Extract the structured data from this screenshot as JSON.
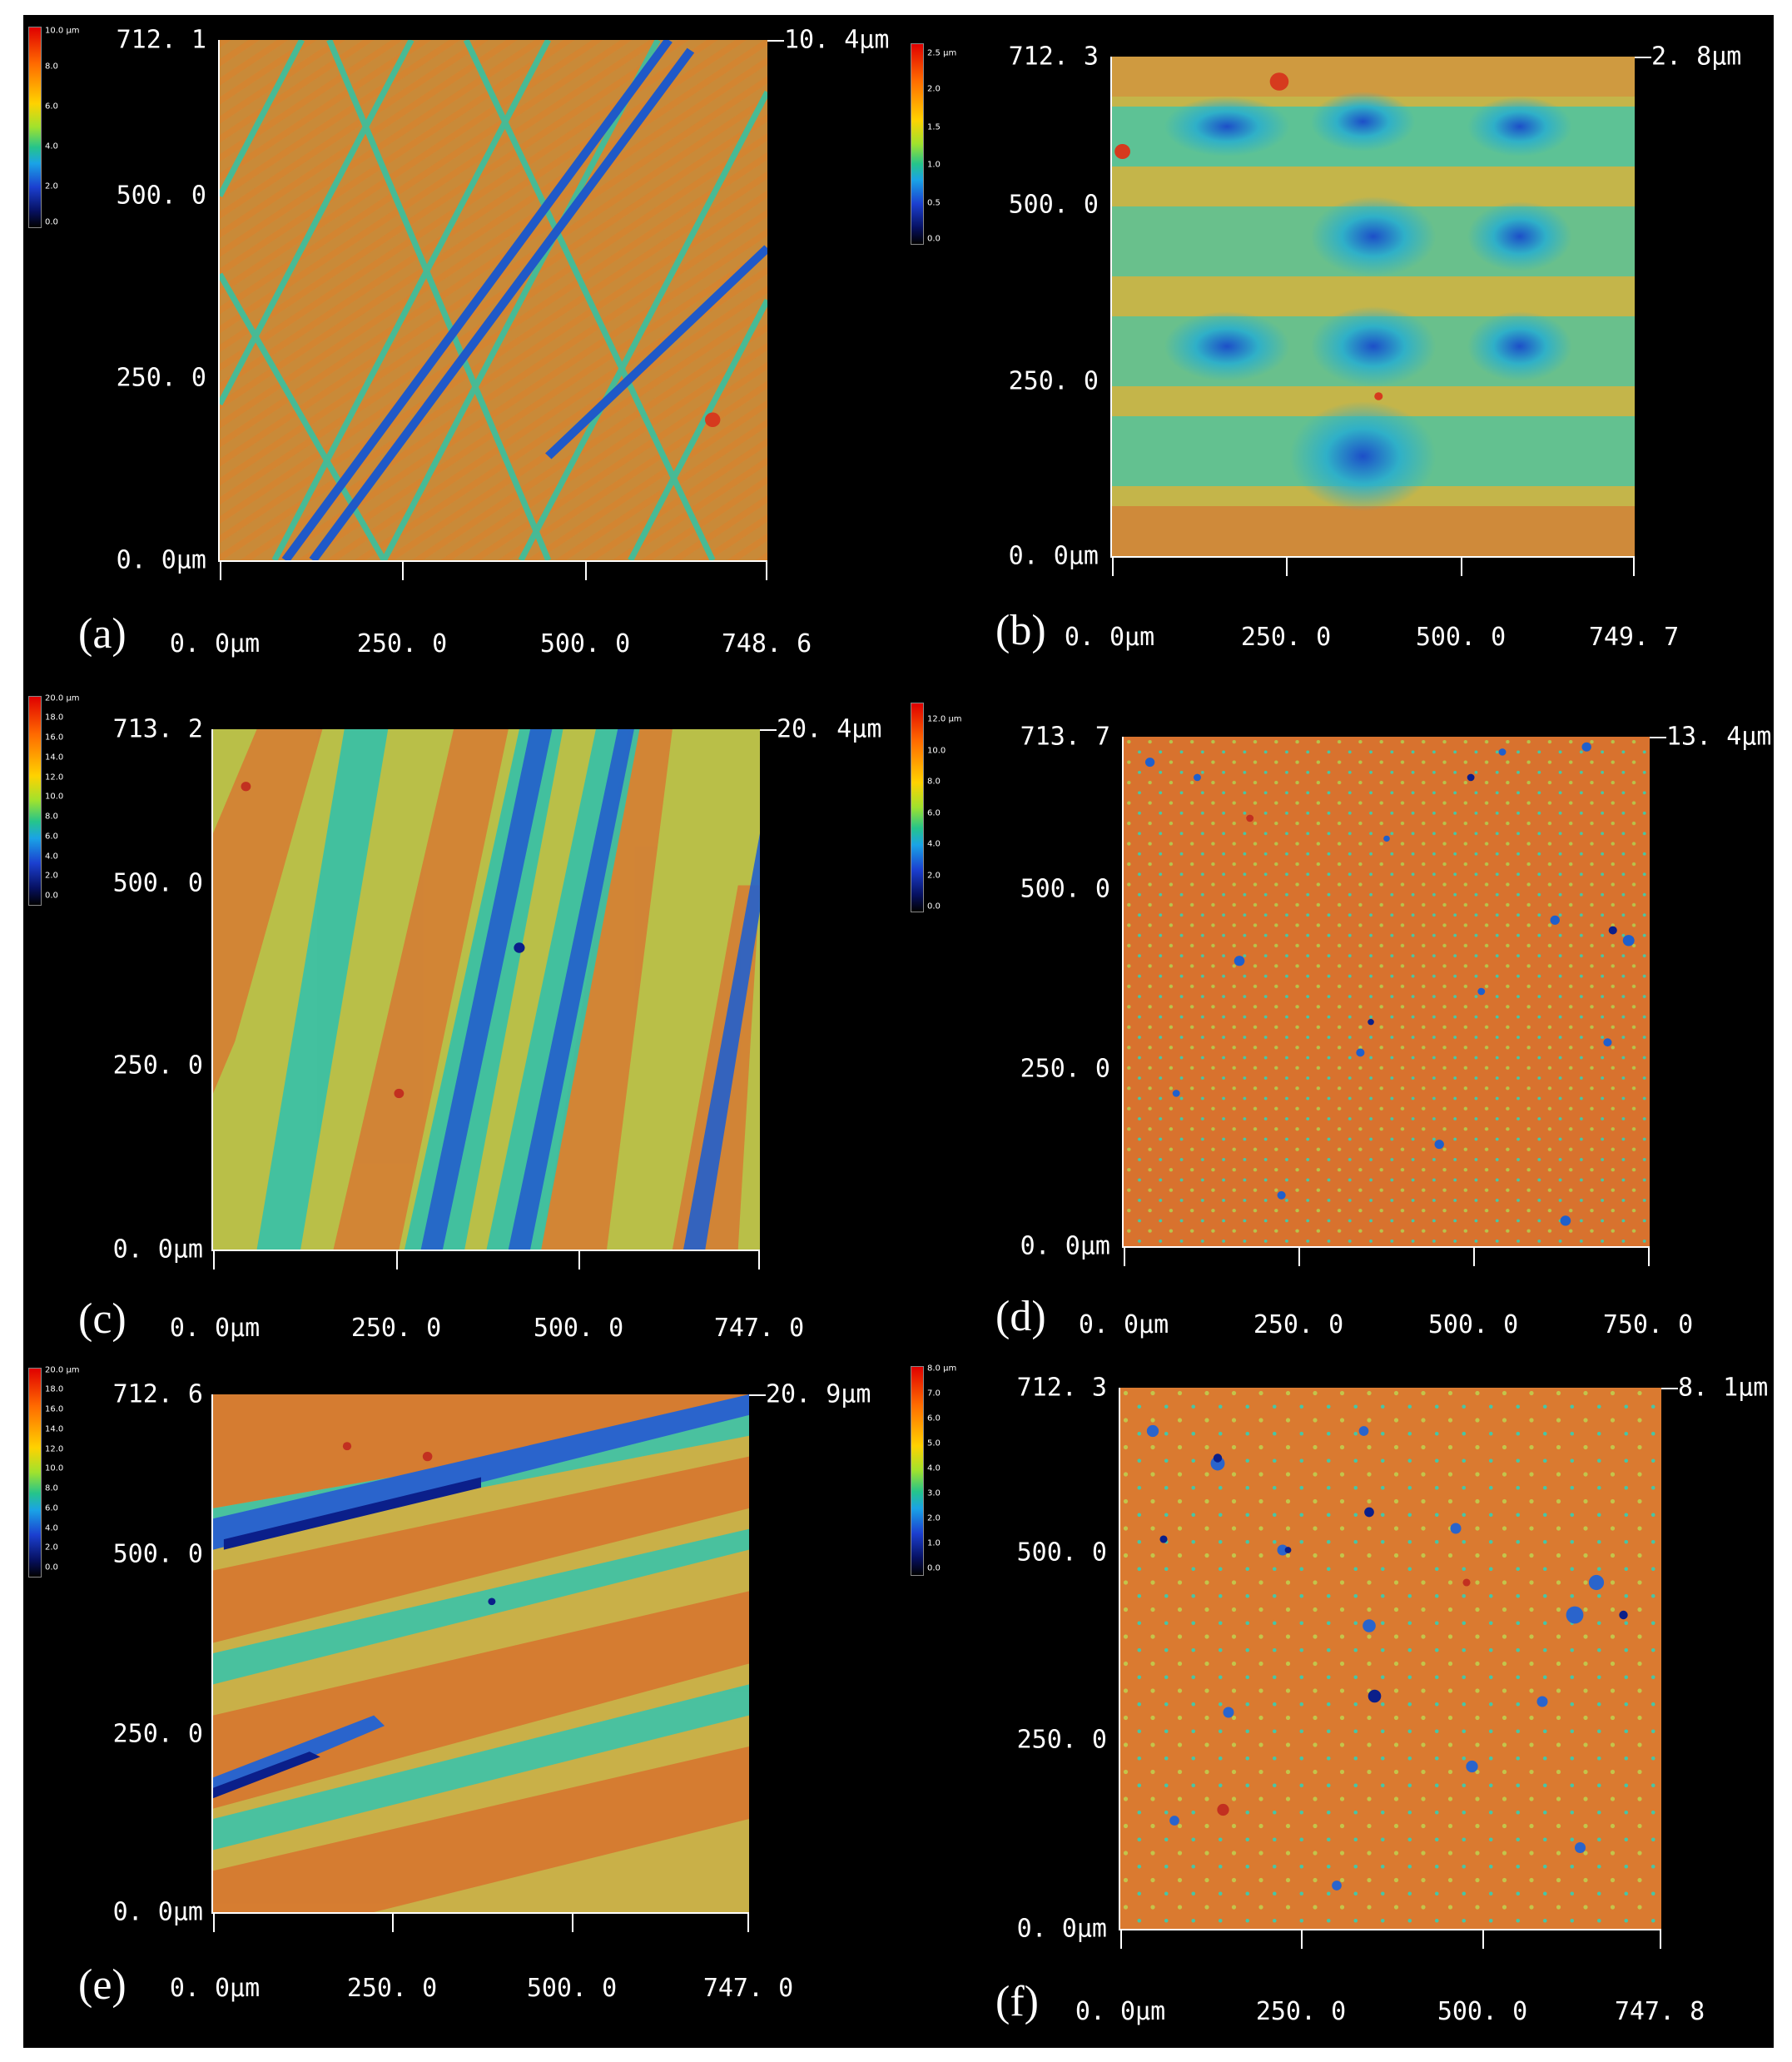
{
  "panels": [
    {
      "id": "a",
      "label": "(a)",
      "y_top": "712. 1",
      "y_mid": "500. 0",
      "y_low": "250. 0",
      "y_zero": "0. 0µm",
      "x_zero": "0. 0µm",
      "x_1": "250. 0",
      "x_2": "500. 0",
      "x_max": "748. 6",
      "z_max": "10. 4µm",
      "cb_ticks": [
        "10.0 µm",
        "8.0",
        "6.0",
        "4.0",
        "2.0",
        "0.0"
      ]
    },
    {
      "id": "b",
      "label": "(b)",
      "y_top": "712. 3",
      "y_mid": "500. 0",
      "y_low": "250. 0",
      "y_zero": "0. 0µm",
      "x_zero": "0. 0µm",
      "x_1": "250. 0",
      "x_2": "500. 0",
      "x_max": "749. 7",
      "z_max": "2. 8µm",
      "cb_ticks": [
        "2.5 µm",
        "2.0",
        "1.5",
        "1.0",
        "0.5",
        "0.0"
      ]
    },
    {
      "id": "c",
      "label": "(c)",
      "y_top": "713. 2",
      "y_mid": "500. 0",
      "y_low": "250. 0",
      "y_zero": "0. 0µm",
      "x_zero": "0. 0µm",
      "x_1": "250. 0",
      "x_2": "500. 0",
      "x_max": "747. 0",
      "z_max": "20. 4µm",
      "cb_ticks": [
        "20.0 µm",
        "18.0",
        "16.0",
        "14.0",
        "12.0",
        "10.0",
        "8.0",
        "6.0",
        "4.0",
        "2.0",
        "0.0"
      ]
    },
    {
      "id": "d",
      "label": "(d)",
      "y_top": "713. 7",
      "y_mid": "500. 0",
      "y_low": "250. 0",
      "y_zero": "0. 0µm",
      "x_zero": "0. 0µm",
      "x_1": "250. 0",
      "x_2": "500. 0",
      "x_max": "750. 0",
      "z_max": "13. 4µm",
      "cb_ticks": [
        "12.0 µm",
        "10.0",
        "8.0",
        "6.0",
        "4.0",
        "2.0",
        "0.0"
      ]
    },
    {
      "id": "e",
      "label": "(e)",
      "y_top": "712. 6",
      "y_mid": "500. 0",
      "y_low": "250. 0",
      "y_zero": "0. 0µm",
      "x_zero": "0. 0µm",
      "x_1": "250. 0",
      "x_2": "500. 0",
      "x_max": "747. 0",
      "z_max": "20. 9µm",
      "cb_ticks": [
        "20.0 µm",
        "18.0",
        "16.0",
        "14.0",
        "12.0",
        "10.0",
        "8.0",
        "6.0",
        "4.0",
        "2.0",
        "0.0"
      ]
    },
    {
      "id": "f",
      "label": "(f)",
      "y_top": "712. 3",
      "y_mid": "500. 0",
      "y_low": "250. 0",
      "y_zero": "0. 0µm",
      "x_zero": "0. 0µm",
      "x_1": "250. 0",
      "x_2": "500. 0",
      "x_max": "747. 8",
      "z_max": "8. 1µm",
      "cb_ticks": [
        "8.0 µm",
        "7.0",
        "6.0",
        "5.0",
        "4.0",
        "3.0",
        "2.0",
        "1.0",
        "0.0"
      ]
    }
  ],
  "colors": {
    "high": "#e03020",
    "mid_high": "#e08a3a",
    "mid": "#c9c94a",
    "low_mid": "#3fc9b0",
    "low": "#2a6fd6",
    "lowest": "#0b1f8a"
  }
}
